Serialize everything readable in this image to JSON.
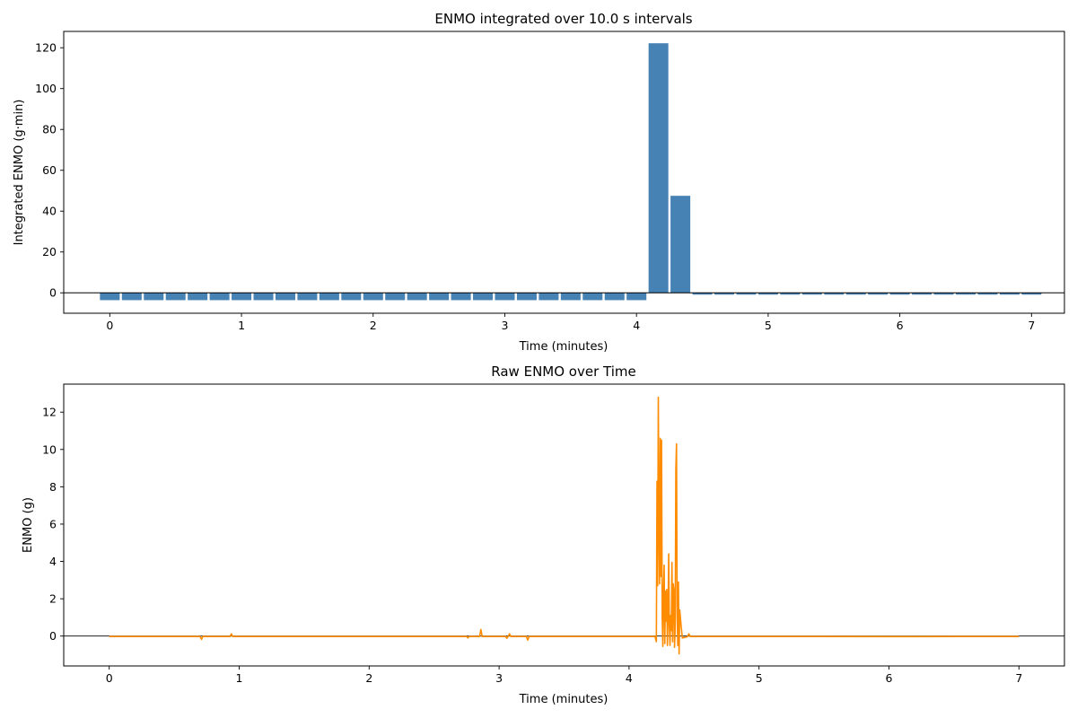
{
  "charts": {
    "top": {
      "type": "bar",
      "title": "ENMO integrated over 10.0 s intervals",
      "xlabel": "Time (minutes)",
      "ylabel": "Integrated ENMO (g·min)",
      "xlim": [
        -0.35,
        7.25
      ],
      "ylim": [
        -10,
        128
      ],
      "xticks": [
        0,
        1,
        2,
        3,
        4,
        5,
        6,
        7
      ],
      "yticks": [
        0,
        20,
        40,
        60,
        80,
        100,
        120
      ],
      "zero_line": true,
      "color": "#4682b4",
      "bar_width_minutes": 0.15,
      "x_start": 0.0,
      "x_step": 0.16667,
      "values": [
        -3.6,
        -3.6,
        -3.6,
        -3.6,
        -3.6,
        -3.6,
        -3.6,
        -3.6,
        -3.6,
        -3.6,
        -3.6,
        -3.6,
        -3.6,
        -3.6,
        -3.6,
        -3.6,
        -3.6,
        -3.6,
        -3.6,
        -3.6,
        -3.6,
        -3.6,
        -3.6,
        -3.6,
        -3.6,
        122.2,
        47.5,
        -0.9,
        -0.9,
        -0.9,
        -0.9,
        -0.9,
        -0.9,
        -0.9,
        -0.9,
        -0.9,
        -0.9,
        -0.9,
        -0.9,
        -0.9,
        -0.9,
        -0.9,
        -0.9
      ]
    },
    "bottom": {
      "type": "line",
      "title": "Raw ENMO over Time",
      "xlabel": "Time (minutes)",
      "ylabel": "ENMO (g)",
      "xlim": [
        -0.35,
        7.35
      ],
      "ylim": [
        -1.6,
        13.5
      ],
      "xticks": [
        0,
        1,
        2,
        3,
        4,
        5,
        6,
        7
      ],
      "yticks": [
        0,
        2,
        4,
        6,
        8,
        10,
        12
      ],
      "zero_line": true,
      "color": "#ff8c00",
      "points": [
        [
          0,
          -0.02
        ],
        [
          0.7,
          -0.02
        ],
        [
          0.71,
          -0.18
        ],
        [
          0.72,
          -0.02
        ],
        [
          0.93,
          -0.02
        ],
        [
          0.94,
          0.12
        ],
        [
          0.95,
          -0.02
        ],
        [
          2.75,
          -0.02
        ],
        [
          2.76,
          -0.1
        ],
        [
          2.77,
          -0.02
        ],
        [
          2.85,
          -0.02
        ],
        [
          2.86,
          0.35
        ],
        [
          2.87,
          -0.02
        ],
        [
          3.05,
          -0.02
        ],
        [
          3.06,
          -0.12
        ],
        [
          3.07,
          -0.02
        ],
        [
          3.08,
          0.12
        ],
        [
          3.09,
          -0.02
        ],
        [
          3.21,
          -0.02
        ],
        [
          3.22,
          -0.22
        ],
        [
          3.23,
          -0.02
        ],
        [
          4.2,
          -0.02
        ],
        [
          4.21,
          -0.3
        ],
        [
          4.215,
          8.3
        ],
        [
          4.22,
          2.7
        ],
        [
          4.225,
          12.8
        ],
        [
          4.23,
          6.0
        ],
        [
          4.235,
          2.8
        ],
        [
          4.24,
          10.6
        ],
        [
          4.245,
          3.2
        ],
        [
          4.25,
          10.5
        ],
        [
          4.255,
          1.0
        ],
        [
          4.26,
          -0.55
        ],
        [
          4.265,
          2.5
        ],
        [
          4.27,
          3.8
        ],
        [
          4.275,
          -0.4
        ],
        [
          4.28,
          2.4
        ],
        [
          4.285,
          0.8
        ],
        [
          4.29,
          2.5
        ],
        [
          4.295,
          -0.5
        ],
        [
          4.3,
          1.2
        ],
        [
          4.305,
          4.4
        ],
        [
          4.31,
          0.5
        ],
        [
          4.315,
          -0.5
        ],
        [
          4.32,
          1.1
        ],
        [
          4.325,
          0.3
        ],
        [
          4.33,
          3.95
        ],
        [
          4.335,
          -0.3
        ],
        [
          4.34,
          2.8
        ],
        [
          4.345,
          2.5
        ],
        [
          4.35,
          -0.6
        ],
        [
          4.355,
          0.5
        ],
        [
          4.36,
          8.9
        ],
        [
          4.365,
          10.3
        ],
        [
          4.37,
          1.2
        ],
        [
          4.375,
          -0.5
        ],
        [
          4.38,
          2.9
        ],
        [
          4.385,
          -0.95
        ],
        [
          4.39,
          1.4
        ],
        [
          4.4,
          0.6
        ],
        [
          4.41,
          -0.1
        ],
        [
          4.45,
          -0.03
        ],
        [
          4.46,
          0.12
        ],
        [
          4.47,
          -0.02
        ],
        [
          5.5,
          -0.02
        ],
        [
          6.0,
          -0.03
        ],
        [
          6.5,
          -0.02
        ],
        [
          7.0,
          -0.02
        ]
      ]
    }
  }
}
